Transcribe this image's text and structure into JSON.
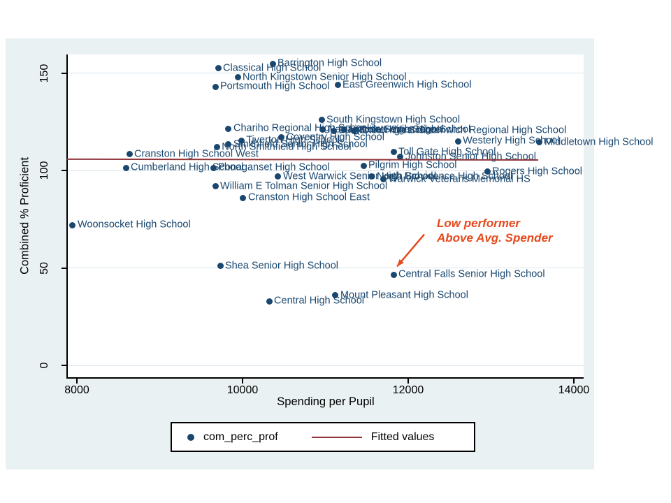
{
  "colors": {
    "marker": "#1a476f",
    "fit_line": "#90353b",
    "annotation": "#e5491d",
    "canvas_bg": "#eaf1f3",
    "plot_bg": "#ffffff",
    "grid": "#d9e5ec",
    "label_text": "#1a476f",
    "axis_text": "#000000"
  },
  "chart_data": {
    "type": "scatter",
    "title": "",
    "xlabel": "Spending per Pupil",
    "ylabel": "Combined % Proficient",
    "xlim": [
      7880,
      14120
    ],
    "ylim": [
      -6,
      160
    ],
    "xticks": [
      8000,
      10000,
      12000,
      14000
    ],
    "yticks": [
      0,
      50,
      100,
      150
    ],
    "grid": true,
    "legend_position": "bottom-center",
    "legend": [
      {
        "marker": "dot",
        "label": "com_perc_prof"
      },
      {
        "marker": "line",
        "label": "Fitted values"
      }
    ],
    "points": [
      {
        "label": "Barrington High School",
        "x": 10363,
        "y": 155
      },
      {
        "label": "Classical High School",
        "x": 9705,
        "y": 152.5
      },
      {
        "label": "North Kingstown Senior High School",
        "x": 9941,
        "y": 148
      },
      {
        "label": "Portsmouth High School",
        "x": 9671,
        "y": 143
      },
      {
        "label": "East Greenwich High School",
        "x": 11148,
        "y": 144
      },
      {
        "label": "South Kingstown High School",
        "x": 10954,
        "y": 126
      },
      {
        "label": "Chariho Regional High School",
        "x": 9831,
        "y": 121.5
      },
      {
        "label": "Narragansett High School",
        "x": 10970,
        "y": 121
      },
      {
        "label": "Burrillville High School",
        "x": 11100,
        "y": 120.5
      },
      {
        "label": "Lincoln Senior High School",
        "x": 11225,
        "y": 121
      },
      {
        "label": "Exeter-West Greenwich Regional High School",
        "x": 11350,
        "y": 120.5
      },
      {
        "label": "Coventry High School",
        "x": 10470,
        "y": 117
      },
      {
        "label": "Tiverton High School",
        "x": 9985,
        "y": 115.5
      },
      {
        "label": "Smithfield Senior High School",
        "x": 9830,
        "y": 113.5
      },
      {
        "label": "North Smithfield High School",
        "x": 9690,
        "y": 112
      },
      {
        "label": "Cranston High School West",
        "x": 8633,
        "y": 108.5
      },
      {
        "label": "Toll Gate High School",
        "x": 11823,
        "y": 109.5
      },
      {
        "label": "Johnston Senior High School",
        "x": 11907,
        "y": 107
      },
      {
        "label": "Westerly High School",
        "x": 12600,
        "y": 115
      },
      {
        "label": "Middletown High School",
        "x": 13586,
        "y": 114.5
      },
      {
        "label": "Cumberland High School",
        "x": 8591,
        "y": 101.5
      },
      {
        "label": "Ponaganset High School",
        "x": 9646,
        "y": 101.5
      },
      {
        "label": "Pilgrim High School",
        "x": 11460,
        "y": 102.5
      },
      {
        "label": "Rogers High School",
        "x": 12954,
        "y": 99.5
      },
      {
        "label": "West Warwick Senior High School",
        "x": 10430,
        "y": 97
      },
      {
        "label": "North Providence High School",
        "x": 11561,
        "y": 97
      },
      {
        "label": "Warwick Veterans Memorial HS",
        "x": 11700,
        "y": 95.5
      },
      {
        "label": "William E Tolman Senior High School",
        "x": 9671,
        "y": 92
      },
      {
        "label": "Cranston High School East",
        "x": 10008,
        "y": 86
      },
      {
        "label": "Woonsocket High School",
        "x": 7949,
        "y": 72
      },
      {
        "label": "Shea Senior High School",
        "x": 9730,
        "y": 51
      },
      {
        "label": "Central Falls Senior High School",
        "x": 11823,
        "y": 46.5
      },
      {
        "label": "Mount Pleasant High School",
        "x": 11122,
        "y": 36
      },
      {
        "label": "Central High School",
        "x": 10321,
        "y": 33
      }
    ],
    "fitted_line": {
      "x": [
        7880,
        13570
      ],
      "y": [
        105.9,
        105.5
      ]
    },
    "annotation": {
      "lines": [
        "Low performer",
        "Above Avg. Spender"
      ],
      "arrow_to_label": "Central Falls Senior High School"
    }
  }
}
